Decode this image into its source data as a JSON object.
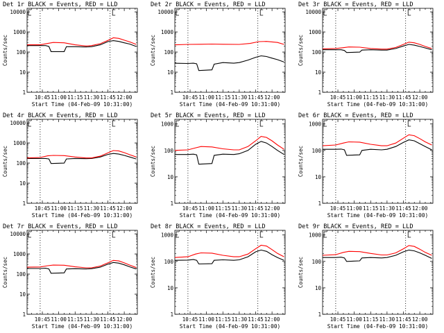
{
  "chart_data": [
    {
      "type": "line",
      "title": "Det 1r BLACK = Events, RED = LLD",
      "xlabel": "Start Time (04-Feb-09 10:31:00)",
      "ylabel": "Counts/sec",
      "yscale": "log",
      "ylim": [
        1,
        15000
      ],
      "xlim": [
        "10:31",
        "12:12"
      ],
      "x_ticks": [
        "10:45",
        "11:00",
        "11:15",
        "11:30",
        "11:45",
        "12:00"
      ],
      "y_ticks": [
        "1",
        "10",
        "100",
        "1000",
        "10000"
      ],
      "dotted_vlines": [
        "10:43",
        "11:47"
      ],
      "markers": [
        "⊏ at 10:31",
        "⊏ at 11:48"
      ],
      "series": [
        {
          "name": "Events",
          "color": "#000000",
          "x": [
            "10:31",
            "10:43",
            "10:48",
            "10:51",
            "10:53",
            "11:05",
            "11:07",
            "11:15",
            "11:25",
            "11:30",
            "11:38",
            "11:45",
            "11:50",
            "11:55",
            "12:00",
            "12:05",
            "12:11"
          ],
          "y": [
            210,
            210,
            210,
            190,
            105,
            105,
            185,
            185,
            180,
            185,
            230,
            330,
            370,
            340,
            290,
            250,
            190
          ]
        },
        {
          "name": "LLD",
          "color": "#ff0000",
          "x": [
            "10:31",
            "10:43",
            "10:50",
            "10:55",
            "11:05",
            "11:15",
            "11:25",
            "11:30",
            "11:38",
            "11:45",
            "11:50",
            "11:55",
            "12:00",
            "12:05",
            "12:11"
          ],
          "y": [
            230,
            230,
            270,
            300,
            290,
            230,
            200,
            210,
            260,
            380,
            510,
            480,
            390,
            320,
            240
          ]
        }
      ]
    },
    {
      "type": "line",
      "title": "Det 2r BLACK = Events, RED = LLD",
      "xlabel": "Start Time (04-Feb-09 10:31:00)",
      "ylabel": "Counts/sec",
      "yscale": "log",
      "ylim": [
        1,
        15000
      ],
      "xlim": [
        "10:31",
        "12:12"
      ],
      "x_ticks": [
        "10:45",
        "11:00",
        "11:15",
        "11:30",
        "11:45",
        "12:00"
      ],
      "y_ticks": [
        "1",
        "10",
        "100",
        "1000",
        "10000"
      ],
      "dotted_vlines": [
        "10:43",
        "11:47"
      ],
      "markers": [
        "⊏ at 10:31",
        "⊏ at 11:48"
      ],
      "series": [
        {
          "name": "Events",
          "color": "#000000",
          "x": [
            "10:31",
            "10:43",
            "10:48",
            "10:51",
            "10:53",
            "11:05",
            "11:07",
            "11:15",
            "11:25",
            "11:30",
            "11:38",
            "11:45",
            "11:50",
            "11:55",
            "12:00",
            "12:05",
            "12:11"
          ],
          "y": [
            28,
            27,
            28,
            26,
            12,
            13,
            25,
            30,
            28,
            30,
            40,
            55,
            65,
            60,
            50,
            42,
            32
          ]
        },
        {
          "name": "LLD",
          "color": "#ff0000",
          "x": [
            "10:31",
            "10:43",
            "10:55",
            "11:05",
            "11:15",
            "11:30",
            "11:40",
            "11:48",
            "11:55",
            "12:05",
            "12:11"
          ],
          "y": [
            230,
            240,
            245,
            250,
            245,
            240,
            270,
            330,
            340,
            300,
            240
          ]
        }
      ]
    },
    {
      "type": "line",
      "title": "Det 3r BLACK = Events, RED = LLD",
      "xlabel": "Start Time (04-Feb-09 10:31:00)",
      "ylabel": "Counts/sec",
      "yscale": "log",
      "ylim": [
        1,
        15000
      ],
      "xlim": [
        "10:31",
        "12:12"
      ],
      "x_ticks": [
        "10:45",
        "11:00",
        "11:15",
        "11:30",
        "11:45",
        "12:00"
      ],
      "y_ticks": [
        "1",
        "10",
        "100",
        "1000",
        "10000"
      ],
      "dotted_vlines": [
        "10:43",
        "11:47"
      ],
      "markers": [
        "⊏ at 10:31",
        "⊏ at 11:48"
      ],
      "series": [
        {
          "name": "Events",
          "color": "#000000",
          "x": [
            "10:31",
            "10:43",
            "10:48",
            "10:51",
            "10:53",
            "11:05",
            "11:07",
            "11:15",
            "11:25",
            "11:30",
            "11:38",
            "11:45",
            "11:50",
            "11:55",
            "12:00",
            "12:05",
            "12:11"
          ],
          "y": [
            130,
            130,
            130,
            120,
            95,
            100,
            125,
            130,
            125,
            125,
            150,
            200,
            240,
            220,
            190,
            160,
            130
          ]
        },
        {
          "name": "LLD",
          "color": "#ff0000",
          "x": [
            "10:31",
            "10:43",
            "10:50",
            "10:55",
            "11:05",
            "11:15",
            "11:25",
            "11:30",
            "11:38",
            "11:45",
            "11:50",
            "11:55",
            "12:00",
            "12:05",
            "12:11"
          ],
          "y": [
            145,
            150,
            165,
            180,
            175,
            150,
            140,
            140,
            170,
            240,
            310,
            290,
            240,
            190,
            150
          ]
        }
      ]
    },
    {
      "type": "line",
      "title": "Det 4r BLACK = Events, RED = LLD",
      "xlabel": "Start Time (04-Feb-09 10:31:00)",
      "ylabel": "Counts/sec",
      "yscale": "log",
      "ylim": [
        1,
        15000
      ],
      "xlim": [
        "10:31",
        "12:12"
      ],
      "x_ticks": [
        "10:45",
        "11:00",
        "11:15",
        "11:30",
        "11:45",
        "12:00"
      ],
      "y_ticks": [
        "1",
        "10",
        "100",
        "1000",
        "10000"
      ],
      "dotted_vlines": [
        "10:43",
        "11:47"
      ],
      "markers": [
        "⊏ at 10:31",
        "⊏ at 11:48"
      ],
      "series": [
        {
          "name": "Events",
          "color": "#000000",
          "x": [
            "10:31",
            "10:43",
            "10:48",
            "10:51",
            "10:53",
            "11:05",
            "11:07",
            "11:15",
            "11:25",
            "11:30",
            "11:38",
            "11:45",
            "11:50",
            "11:55",
            "12:00",
            "12:05",
            "12:11"
          ],
          "y": [
            170,
            170,
            170,
            160,
            95,
            100,
            160,
            170,
            165,
            170,
            200,
            270,
            300,
            280,
            240,
            200,
            160
          ]
        },
        {
          "name": "LLD",
          "color": "#ff0000",
          "x": [
            "10:31",
            "10:43",
            "10:50",
            "10:55",
            "11:05",
            "11:15",
            "11:25",
            "11:30",
            "11:38",
            "11:45",
            "11:50",
            "11:55",
            "12:00",
            "12:05",
            "12:11"
          ],
          "y": [
            180,
            190,
            230,
            240,
            235,
            200,
            180,
            180,
            220,
            320,
            420,
            400,
            330,
            260,
            200
          ]
        }
      ]
    },
    {
      "type": "line",
      "title": "Det 5r BLACK = Events, RED = LLD",
      "xlabel": "Start Time (04-Feb-09 10:31:00)",
      "ylabel": "Counts/sec",
      "yscale": "log",
      "ylim": [
        1,
        1500
      ],
      "xlim": [
        "10:31",
        "12:12"
      ],
      "x_ticks": [
        "10:45",
        "11:00",
        "11:15",
        "11:30",
        "11:45",
        "12:00"
      ],
      "y_ticks": [
        "1",
        "10",
        "100",
        "1000"
      ],
      "dotted_vlines": [
        "10:43",
        "11:47"
      ],
      "markers": [
        "⊏ at 10:31",
        "⊏ at 11:48"
      ],
      "series": [
        {
          "name": "Events",
          "color": "#000000",
          "x": [
            "10:31",
            "10:43",
            "10:48",
            "10:51",
            "10:53",
            "11:05",
            "11:07",
            "11:15",
            "11:25",
            "11:30",
            "11:38",
            "11:45",
            "11:50",
            "11:55",
            "12:00",
            "12:05",
            "12:11"
          ],
          "y": [
            70,
            70,
            72,
            68,
            30,
            32,
            65,
            72,
            70,
            75,
            100,
            170,
            220,
            190,
            140,
            100,
            70
          ]
        },
        {
          "name": "LLD",
          "color": "#ff0000",
          "x": [
            "10:31",
            "10:43",
            "10:50",
            "10:55",
            "11:05",
            "11:15",
            "11:25",
            "11:30",
            "11:38",
            "11:45",
            "11:50",
            "11:55",
            "12:00",
            "12:05",
            "12:11"
          ],
          "y": [
            100,
            105,
            125,
            140,
            135,
            115,
            105,
            105,
            140,
            230,
            340,
            310,
            230,
            160,
            110
          ]
        }
      ]
    },
    {
      "type": "line",
      "title": "Det 6r BLACK = Events, RED = LLD",
      "xlabel": "Start Time (04-Feb-09 10:31:00)",
      "ylabel": "Counts/sec",
      "yscale": "log",
      "ylim": [
        1,
        1500
      ],
      "xlim": [
        "10:31",
        "12:12"
      ],
      "x_ticks": [
        "10:45",
        "11:00",
        "11:15",
        "11:30",
        "11:45",
        "12:00"
      ],
      "y_ticks": [
        "1",
        "10",
        "100",
        "1000"
      ],
      "dotted_vlines": [
        "10:43",
        "11:47"
      ],
      "markers": [
        "⊏ at 10:31",
        "⊏ at 11:48"
      ],
      "series": [
        {
          "name": "Events",
          "color": "#000000",
          "x": [
            "10:31",
            "10:43",
            "10:48",
            "10:51",
            "10:53",
            "11:05",
            "11:07",
            "11:15",
            "11:25",
            "11:30",
            "11:38",
            "11:45",
            "11:50",
            "11:55",
            "12:00",
            "12:05",
            "12:11"
          ],
          "y": [
            110,
            110,
            112,
            105,
            65,
            68,
            100,
            110,
            105,
            110,
            140,
            200,
            250,
            230,
            180,
            140,
            105
          ]
        },
        {
          "name": "LLD",
          "color": "#ff0000",
          "x": [
            "10:31",
            "10:43",
            "10:50",
            "10:55",
            "11:05",
            "11:15",
            "11:25",
            "11:30",
            "11:38",
            "11:45",
            "11:50",
            "11:55",
            "12:00",
            "12:05",
            "12:11"
          ],
          "y": [
            150,
            160,
            190,
            210,
            205,
            170,
            150,
            150,
            190,
            290,
            390,
            360,
            280,
            210,
            160
          ]
        }
      ]
    },
    {
      "type": "line",
      "title": "Det 7r BLACK = Events, RED = LLD",
      "xlabel": "Start Time (04-Feb-09 10:31:00)",
      "ylabel": "Counts/sec",
      "yscale": "log",
      "ylim": [
        1,
        15000
      ],
      "xlim": [
        "10:31",
        "12:12"
      ],
      "x_ticks": [
        "10:45",
        "11:00",
        "11:15",
        "11:30",
        "11:45",
        "12:00"
      ],
      "y_ticks": [
        "1",
        "10",
        "100",
        "1000",
        "10000"
      ],
      "dotted_vlines": [
        "10:43",
        "11:47"
      ],
      "markers": [
        "⊏ at 10:31",
        "⊏ at 11:48"
      ],
      "series": [
        {
          "name": "Events",
          "color": "#000000",
          "x": [
            "10:31",
            "10:43",
            "10:48",
            "10:51",
            "10:53",
            "11:05",
            "11:07",
            "11:15",
            "11:25",
            "11:30",
            "11:38",
            "11:45",
            "11:50",
            "11:55",
            "12:00",
            "12:05",
            "12:11"
          ],
          "y": [
            190,
            190,
            195,
            180,
            110,
            115,
            180,
            185,
            180,
            185,
            220,
            310,
            380,
            350,
            290,
            230,
            180
          ]
        },
        {
          "name": "LLD",
          "color": "#ff0000",
          "x": [
            "10:31",
            "10:43",
            "10:50",
            "10:55",
            "11:05",
            "11:15",
            "11:25",
            "11:30",
            "11:38",
            "11:45",
            "11:50",
            "11:55",
            "12:00",
            "12:05",
            "12:11"
          ],
          "y": [
            220,
            225,
            260,
            280,
            275,
            230,
            205,
            205,
            250,
            360,
            480,
            450,
            360,
            280,
            210
          ]
        }
      ]
    },
    {
      "type": "line",
      "title": "Det 8r BLACK = Events, RED = LLD",
      "xlabel": "Start Time (04-Feb-09 10:31:00)",
      "ylabel": "Counts/sec",
      "yscale": "log",
      "ylim": [
        1,
        1500
      ],
      "xlim": [
        "10:31",
        "12:12"
      ],
      "x_ticks": [
        "10:45",
        "11:00",
        "11:15",
        "11:30",
        "11:45",
        "12:00"
      ],
      "y_ticks": [
        "1",
        "10",
        "100",
        "1000"
      ],
      "dotted_vlines": [
        "10:43",
        "11:47"
      ],
      "markers": [
        "⊏ at 10:31",
        "⊏ at 11:48"
      ],
      "series": [
        {
          "name": "Events",
          "color": "#000000",
          "x": [
            "10:31",
            "10:43",
            "10:48",
            "10:51",
            "10:53",
            "11:05",
            "11:07",
            "11:15",
            "11:25",
            "11:30",
            "11:38",
            "11:45",
            "11:50",
            "11:55",
            "12:00",
            "12:05",
            "12:11"
          ],
          "y": [
            110,
            112,
            118,
            110,
            80,
            82,
            110,
            115,
            110,
            115,
            150,
            230,
            270,
            240,
            180,
            140,
            110
          ]
        },
        {
          "name": "LLD",
          "color": "#ff0000",
          "x": [
            "10:31",
            "10:43",
            "10:50",
            "10:55",
            "11:05",
            "11:15",
            "11:25",
            "11:30",
            "11:38",
            "11:45",
            "11:50",
            "11:55",
            "12:00",
            "12:05",
            "12:11"
          ],
          "y": [
            140,
            150,
            190,
            210,
            205,
            170,
            150,
            150,
            190,
            300,
            410,
            380,
            280,
            200,
            150
          ]
        }
      ]
    },
    {
      "type": "line",
      "title": "Det 9r BLACK = Events, RED = LLD",
      "xlabel": "Start Time (04-Feb-09 10:31:00)",
      "ylabel": "Counts/sec",
      "yscale": "log",
      "ylim": [
        1,
        1500
      ],
      "xlim": [
        "10:31",
        "12:12"
      ],
      "x_ticks": [
        "10:45",
        "11:00",
        "11:15",
        "11:30",
        "11:45",
        "12:00"
      ],
      "y_ticks": [
        "1",
        "10",
        "100",
        "1000"
      ],
      "dotted_vlines": [
        "10:43",
        "11:47"
      ],
      "markers": [
        "⊏ at 10:31",
        "⊏ at 11:48"
      ],
      "series": [
        {
          "name": "Events",
          "color": "#000000",
          "x": [
            "10:31",
            "10:43",
            "10:48",
            "10:51",
            "10:53",
            "11:05",
            "11:07",
            "11:15",
            "11:25",
            "11:30",
            "11:38",
            "11:45",
            "11:50",
            "11:55",
            "12:00",
            "12:05",
            "12:11"
          ],
          "y": [
            140,
            140,
            145,
            135,
            100,
            105,
            135,
            140,
            135,
            140,
            170,
            230,
            270,
            250,
            210,
            170,
            130
          ]
        },
        {
          "name": "LLD",
          "color": "#ff0000",
          "x": [
            "10:31",
            "10:43",
            "10:50",
            "10:55",
            "11:05",
            "11:15",
            "11:25",
            "11:30",
            "11:38",
            "11:45",
            "11:50",
            "11:55",
            "12:00",
            "12:05",
            "12:11"
          ],
          "y": [
            170,
            180,
            220,
            240,
            235,
            200,
            175,
            175,
            210,
            300,
            400,
            370,
            290,
            220,
            170
          ]
        }
      ]
    }
  ]
}
